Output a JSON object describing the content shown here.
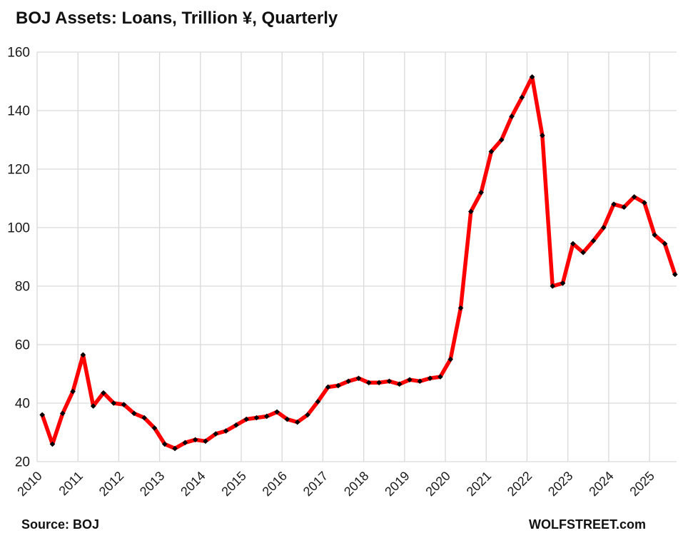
{
  "title": "BOJ Assets: Loans, Trillion ¥, Quarterly",
  "footer": {
    "source_label": "Source: BOJ",
    "brand_label": "WOLFSTREET.com"
  },
  "colors": {
    "line": "#ff0000",
    "marker": "#000000",
    "grid": "#d9d9d9",
    "text": "#1a1a1a",
    "background": "#ffffff"
  },
  "chart_data": {
    "type": "line",
    "title": "BOJ Assets: Loans, Trillion ¥, Quarterly",
    "xlabel": "",
    "ylabel": "",
    "ylim": [
      20,
      160
    ],
    "y_ticks": [
      20,
      40,
      60,
      80,
      100,
      120,
      140,
      160
    ],
    "x_tick_labels": [
      "2010",
      "2011",
      "2012",
      "2013",
      "2014",
      "2015",
      "2016",
      "2017",
      "2018",
      "2019",
      "2020",
      "2021",
      "2022",
      "2023",
      "2024",
      "2025"
    ],
    "grid": true,
    "legend_position": "none",
    "frequency": "quarterly",
    "x": [
      "2010 Q1",
      "2010 Q2",
      "2010 Q3",
      "2010 Q4",
      "2011 Q1",
      "2011 Q2",
      "2011 Q3",
      "2011 Q4",
      "2012 Q1",
      "2012 Q2",
      "2012 Q3",
      "2012 Q4",
      "2013 Q1",
      "2013 Q2",
      "2013 Q3",
      "2013 Q4",
      "2014 Q1",
      "2014 Q2",
      "2014 Q3",
      "2014 Q4",
      "2015 Q1",
      "2015 Q2",
      "2015 Q3",
      "2015 Q4",
      "2016 Q1",
      "2016 Q2",
      "2016 Q3",
      "2016 Q4",
      "2017 Q1",
      "2017 Q2",
      "2017 Q3",
      "2017 Q4",
      "2018 Q1",
      "2018 Q2",
      "2018 Q3",
      "2018 Q4",
      "2019 Q1",
      "2019 Q2",
      "2019 Q3",
      "2019 Q4",
      "2020 Q1",
      "2020 Q2",
      "2020 Q3",
      "2020 Q4",
      "2021 Q1",
      "2021 Q2",
      "2021 Q3",
      "2021 Q4",
      "2022 Q1",
      "2022 Q2",
      "2022 Q3",
      "2022 Q4",
      "2023 Q1",
      "2023 Q2",
      "2023 Q3",
      "2023 Q4",
      "2024 Q1",
      "2024 Q2",
      "2024 Q3",
      "2024 Q4",
      "2025 Q1",
      "2025 Q2",
      "2025 Q3"
    ],
    "series": [
      {
        "name": "BOJ assets: loans, trillion yen",
        "values": [
          36,
          26,
          36.5,
          44,
          56.5,
          39,
          43.5,
          40,
          39.5,
          36.5,
          35,
          31.5,
          26,
          24.5,
          26.5,
          27.5,
          27,
          29.5,
          30.5,
          32.5,
          34.5,
          35,
          35.5,
          37,
          34.5,
          33.5,
          36,
          40.5,
          45.5,
          46,
          47.5,
          48.5,
          47,
          47,
          47.5,
          46.5,
          48,
          47.5,
          48.5,
          49,
          55,
          72.5,
          105.5,
          112,
          126,
          130,
          138,
          144.5,
          151.5,
          131.5,
          80,
          81,
          94.5,
          91.5,
          95.5,
          100,
          108,
          107,
          110.5,
          108.5,
          97.5,
          94.5,
          84
        ]
      }
    ]
  }
}
